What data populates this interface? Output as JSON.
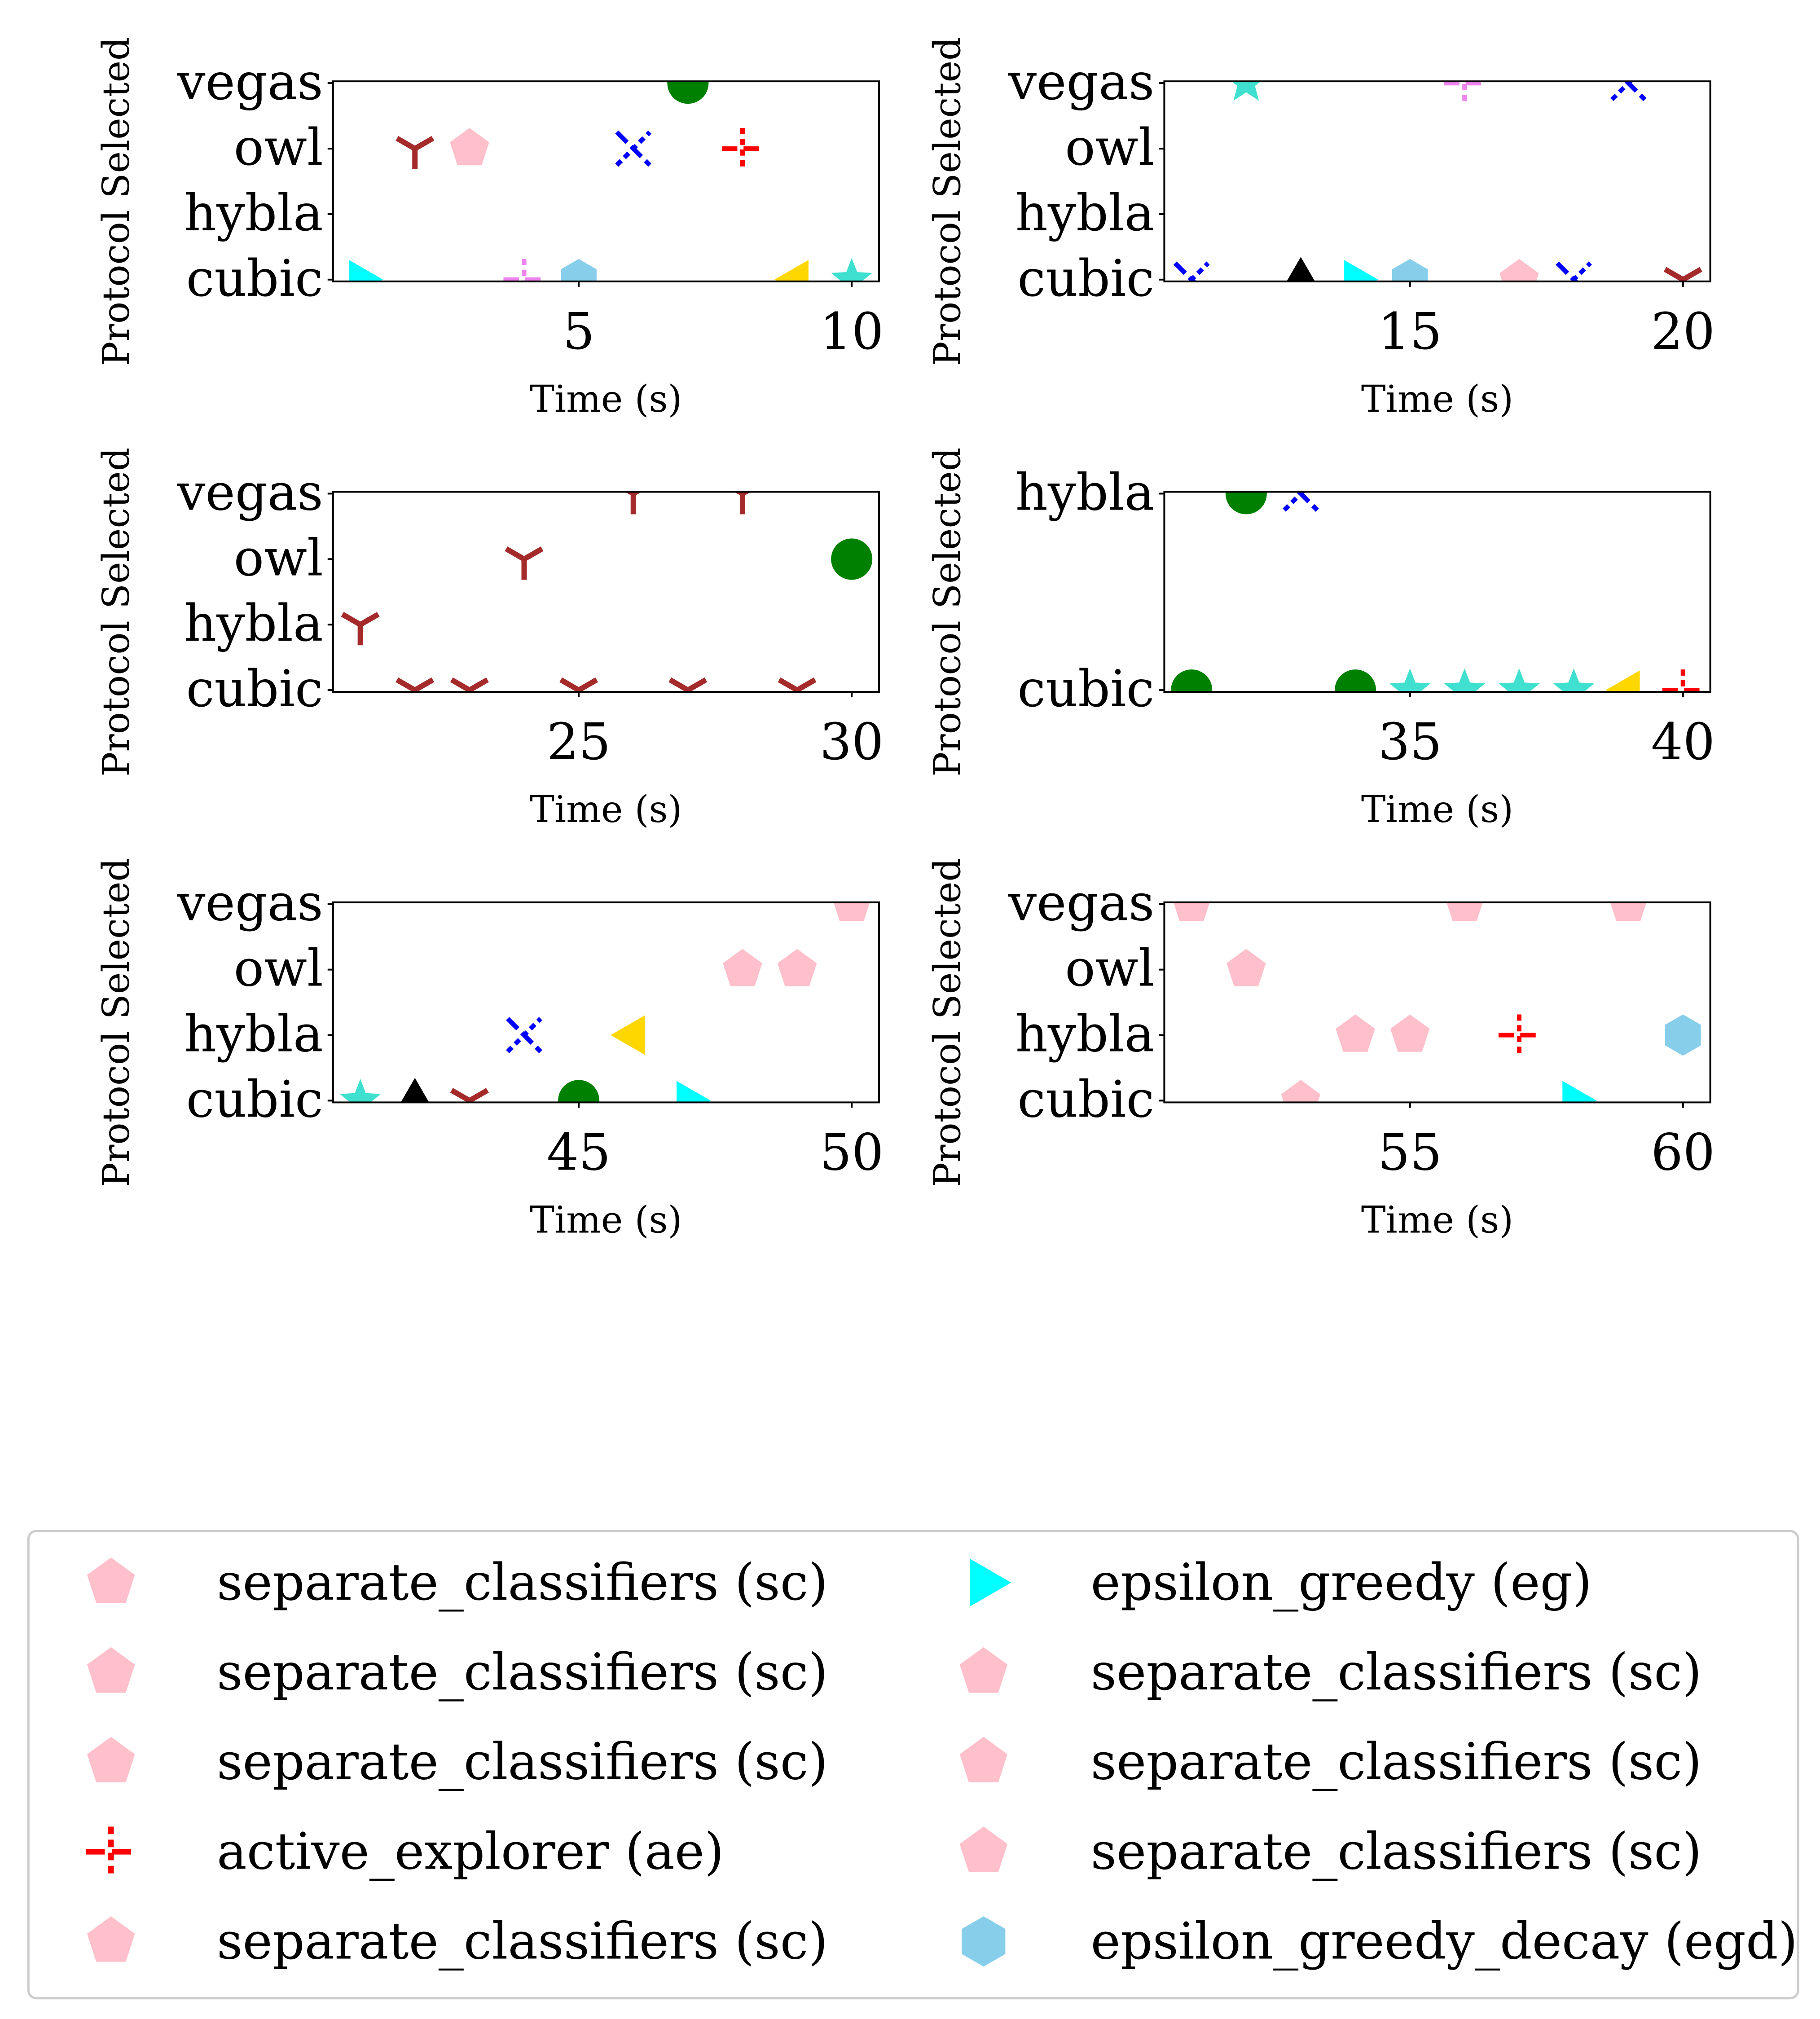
{
  "chart_data": [
    {
      "type": "scatter",
      "xlabel": "Time (s)",
      "ylabel": "Protocol Selected",
      "xlim": [
        0.5,
        10.5
      ],
      "xticks": [
        5,
        10
      ],
      "categories": [
        "cubic",
        "hybla",
        "owl",
        "vegas"
      ],
      "points": [
        {
          "x": 1,
          "y": "cubic",
          "series": "eg"
        },
        {
          "x": 2,
          "y": "owl",
          "series": "brown"
        },
        {
          "x": 3,
          "y": "owl",
          "series": "sc"
        },
        {
          "x": 4,
          "y": "cubic",
          "series": "violet"
        },
        {
          "x": 5,
          "y": "cubic",
          "series": "egd"
        },
        {
          "x": 6,
          "y": "owl",
          "series": "blue"
        },
        {
          "x": 7,
          "y": "vegas",
          "series": "green"
        },
        {
          "x": 8,
          "y": "owl",
          "series": "ae"
        },
        {
          "x": 9,
          "y": "cubic",
          "series": "gold"
        },
        {
          "x": 10,
          "y": "cubic",
          "series": "turquoise"
        }
      ]
    },
    {
      "type": "scatter",
      "xlabel": "Time (s)",
      "ylabel": "Protocol Selected",
      "xlim": [
        10.5,
        20.5
      ],
      "xticks": [
        15,
        20
      ],
      "categories": [
        "cubic",
        "hybla",
        "owl",
        "vegas"
      ],
      "points": [
        {
          "x": 11,
          "y": "cubic",
          "series": "blue"
        },
        {
          "x": 12,
          "y": "vegas",
          "series": "turquoise"
        },
        {
          "x": 13,
          "y": "cubic",
          "series": "black"
        },
        {
          "x": 14,
          "y": "cubic",
          "series": "eg"
        },
        {
          "x": 15,
          "y": "cubic",
          "series": "egd"
        },
        {
          "x": 16,
          "y": "vegas",
          "series": "violet"
        },
        {
          "x": 17,
          "y": "cubic",
          "series": "sc"
        },
        {
          "x": 18,
          "y": "cubic",
          "series": "blue"
        },
        {
          "x": 19,
          "y": "vegas",
          "series": "blue"
        },
        {
          "x": 20,
          "y": "cubic",
          "series": "brown"
        }
      ]
    },
    {
      "type": "scatter",
      "xlabel": "Time (s)",
      "ylabel": "Protocol Selected",
      "xlim": [
        20.5,
        30.5
      ],
      "xticks": [
        25,
        30
      ],
      "categories": [
        "cubic",
        "hybla",
        "owl",
        "vegas"
      ],
      "points": [
        {
          "x": 21,
          "y": "hybla",
          "series": "brown"
        },
        {
          "x": 22,
          "y": "cubic",
          "series": "brown"
        },
        {
          "x": 23,
          "y": "cubic",
          "series": "brown"
        },
        {
          "x": 24,
          "y": "owl",
          "series": "brown"
        },
        {
          "x": 25,
          "y": "cubic",
          "series": "brown"
        },
        {
          "x": 26,
          "y": "vegas",
          "series": "brown"
        },
        {
          "x": 27,
          "y": "cubic",
          "series": "brown"
        },
        {
          "x": 28,
          "y": "vegas",
          "series": "brown"
        },
        {
          "x": 29,
          "y": "cubic",
          "series": "brown"
        },
        {
          "x": 30,
          "y": "owl",
          "series": "green"
        }
      ]
    },
    {
      "type": "scatter",
      "xlabel": "Time (s)",
      "ylabel": "Protocol Selected",
      "xlim": [
        30.5,
        40.5
      ],
      "xticks": [
        35,
        40
      ],
      "categories": [
        "cubic",
        "hybla"
      ],
      "points": [
        {
          "x": 31,
          "y": "cubic",
          "series": "green"
        },
        {
          "x": 32,
          "y": "hybla",
          "series": "green"
        },
        {
          "x": 33,
          "y": "hybla",
          "series": "blue"
        },
        {
          "x": 34,
          "y": "cubic",
          "series": "green"
        },
        {
          "x": 35,
          "y": "cubic",
          "series": "turquoise"
        },
        {
          "x": 36,
          "y": "cubic",
          "series": "turquoise"
        },
        {
          "x": 37,
          "y": "cubic",
          "series": "turquoise"
        },
        {
          "x": 38,
          "y": "cubic",
          "series": "turquoise"
        },
        {
          "x": 39,
          "y": "cubic",
          "series": "gold"
        },
        {
          "x": 40,
          "y": "cubic",
          "series": "ae"
        }
      ]
    },
    {
      "type": "scatter",
      "xlabel": "Time (s)",
      "ylabel": "Protocol Selected",
      "xlim": [
        40.5,
        50.5
      ],
      "xticks": [
        45,
        50
      ],
      "categories": [
        "cubic",
        "hybla",
        "owl",
        "vegas"
      ],
      "points": [
        {
          "x": 41,
          "y": "cubic",
          "series": "turquoise"
        },
        {
          "x": 42,
          "y": "cubic",
          "series": "black"
        },
        {
          "x": 43,
          "y": "cubic",
          "series": "brown"
        },
        {
          "x": 44,
          "y": "hybla",
          "series": "blue"
        },
        {
          "x": 45,
          "y": "cubic",
          "series": "green"
        },
        {
          "x": 46,
          "y": "hybla",
          "series": "gold"
        },
        {
          "x": 47,
          "y": "cubic",
          "series": "eg"
        },
        {
          "x": 48,
          "y": "owl",
          "series": "sc"
        },
        {
          "x": 49,
          "y": "owl",
          "series": "sc"
        },
        {
          "x": 50,
          "y": "vegas",
          "series": "sc"
        }
      ]
    },
    {
      "type": "scatter",
      "xlabel": "Time (s)",
      "ylabel": "Protocol Selected",
      "xlim": [
        50.5,
        60.5
      ],
      "xticks": [
        55,
        60
      ],
      "categories": [
        "cubic",
        "hybla",
        "owl",
        "vegas"
      ],
      "points": [
        {
          "x": 51,
          "y": "vegas",
          "series": "sc"
        },
        {
          "x": 52,
          "y": "owl",
          "series": "sc"
        },
        {
          "x": 53,
          "y": "cubic",
          "series": "sc"
        },
        {
          "x": 54,
          "y": "hybla",
          "series": "sc"
        },
        {
          "x": 55,
          "y": "hybla",
          "series": "sc"
        },
        {
          "x": 56,
          "y": "vegas",
          "series": "sc"
        },
        {
          "x": 57,
          "y": "hybla",
          "series": "ae"
        },
        {
          "x": 58,
          "y": "cubic",
          "series": "eg"
        },
        {
          "x": 59,
          "y": "vegas",
          "series": "sc"
        },
        {
          "x": 60,
          "y": "hybla",
          "series": "egd"
        }
      ]
    }
  ],
  "styles": {
    "sc": {
      "marker": "pentagon",
      "color": "#ffc0cb"
    },
    "ae": {
      "marker": "dashcross",
      "color": "#ff0000"
    },
    "eg": {
      "marker": "triangle-right",
      "color": "#00ffff"
    },
    "egd": {
      "marker": "hexagon",
      "color": "#87ceeb"
    },
    "brown": {
      "marker": "tri-down",
      "color": "#a52a2a"
    },
    "blue": {
      "marker": "dashx",
      "color": "#0000ff"
    },
    "green": {
      "marker": "circle",
      "color": "#008000"
    },
    "gold": {
      "marker": "triangle-left",
      "color": "#ffd700"
    },
    "turquoise": {
      "marker": "star",
      "color": "#40e0d0"
    },
    "violet": {
      "marker": "dashcross",
      "color": "#ee82ee"
    },
    "black": {
      "marker": "triangle-up",
      "color": "#000000"
    }
  },
  "legend": {
    "placement": "bottom",
    "columns": 2,
    "entries": [
      {
        "label": "separate_classifiers (sc)",
        "series": "sc"
      },
      {
        "label": "separate_classifiers (sc)",
        "series": "sc"
      },
      {
        "label": "separate_classifiers (sc)",
        "series": "sc"
      },
      {
        "label": "active_explorer (ae)",
        "series": "ae"
      },
      {
        "label": "separate_classifiers (sc)",
        "series": "sc"
      },
      {
        "label": "epsilon_greedy (eg)",
        "series": "eg"
      },
      {
        "label": "separate_classifiers (sc)",
        "series": "sc"
      },
      {
        "label": "separate_classifiers (sc)",
        "series": "sc"
      },
      {
        "label": "separate_classifiers (sc)",
        "series": "sc"
      },
      {
        "label": "epsilon_greedy_decay (egd)",
        "series": "egd"
      }
    ]
  }
}
